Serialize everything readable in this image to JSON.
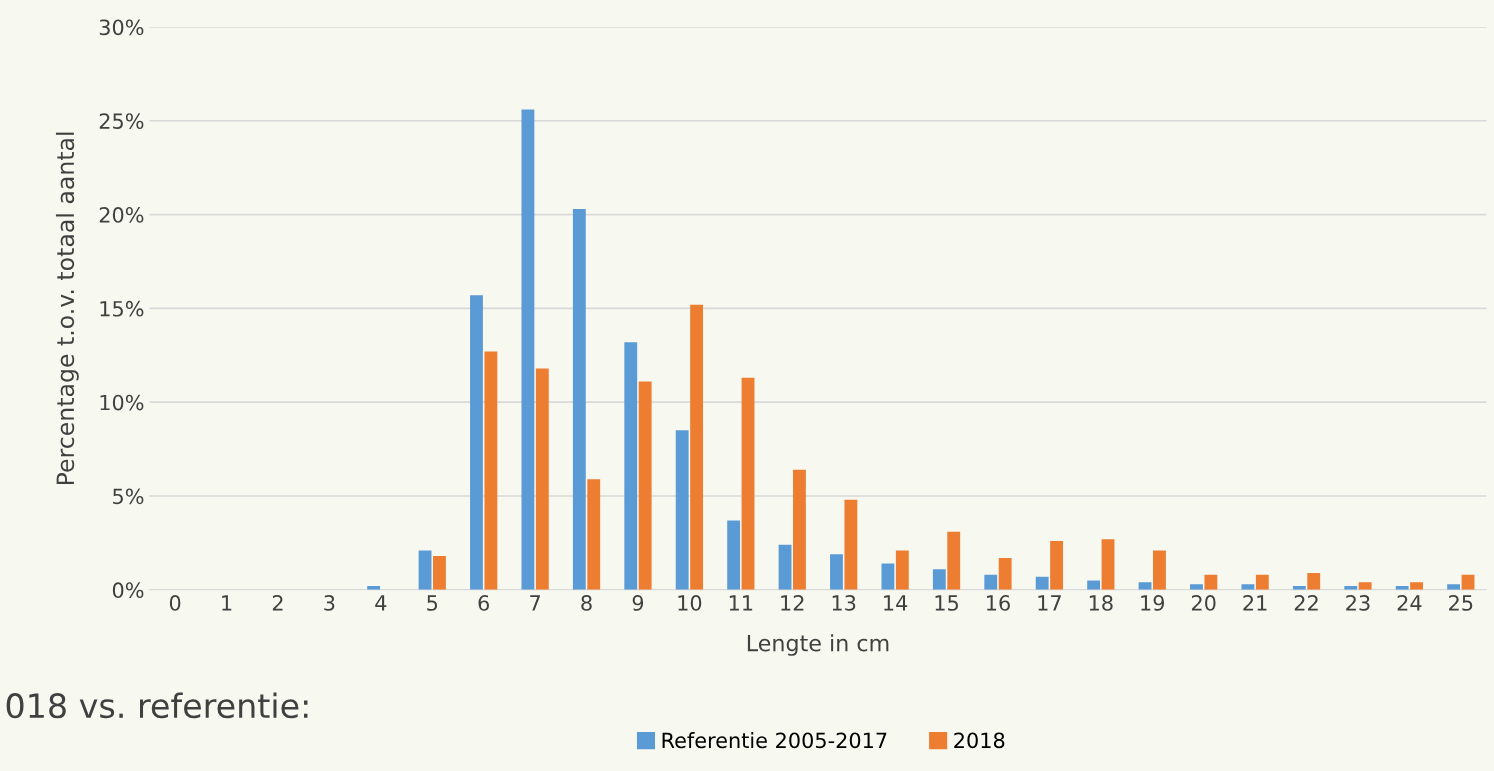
{
  "chart_data": {
    "type": "bar",
    "xlabel": "Lengte in cm",
    "ylabel": "Percentage t.o.v. totaal aantal",
    "categories": [
      "0",
      "1",
      "2",
      "3",
      "4",
      "5",
      "6",
      "7",
      "8",
      "9",
      "10",
      "11",
      "12",
      "13",
      "14",
      "15",
      "16",
      "17",
      "18",
      "19",
      "20",
      "21",
      "22",
      "23",
      "24",
      "25"
    ],
    "series": [
      {
        "name": "Referentie 2005-2017",
        "color": "#5b9bd5",
        "values": [
          0,
          0,
          0,
          0,
          0.2,
          2.1,
          15.7,
          25.6,
          20.3,
          13.2,
          8.5,
          3.7,
          2.4,
          1.9,
          1.4,
          1.1,
          0.8,
          0.7,
          0.5,
          0.4,
          0.3,
          0.3,
          0.2,
          0.2,
          0.2,
          0.3
        ]
      },
      {
        "name": "2018",
        "color": "#ed7d31",
        "values": [
          0,
          0,
          0,
          0,
          0,
          1.8,
          12.7,
          11.8,
          5.9,
          11.1,
          15.2,
          11.3,
          6.4,
          4.8,
          2.1,
          3.1,
          1.7,
          2.6,
          2.7,
          2.1,
          0.8,
          0.8,
          0.9,
          0.4,
          0.4,
          0.8
        ]
      }
    ],
    "ylim": [
      0,
      30
    ],
    "yticks": [
      {
        "value": 0,
        "label": "0%"
      },
      {
        "value": 5,
        "label": "5%"
      },
      {
        "value": 10,
        "label": "10%"
      },
      {
        "value": 15,
        "label": "15%"
      },
      {
        "value": 20,
        "label": "20%"
      },
      {
        "value": 25,
        "label": "25%"
      },
      {
        "value": 30,
        "label": "30%"
      }
    ],
    "grid": "y",
    "legend": "bottom",
    "annotations": [
      "018 vs. referentie:"
    ]
  }
}
